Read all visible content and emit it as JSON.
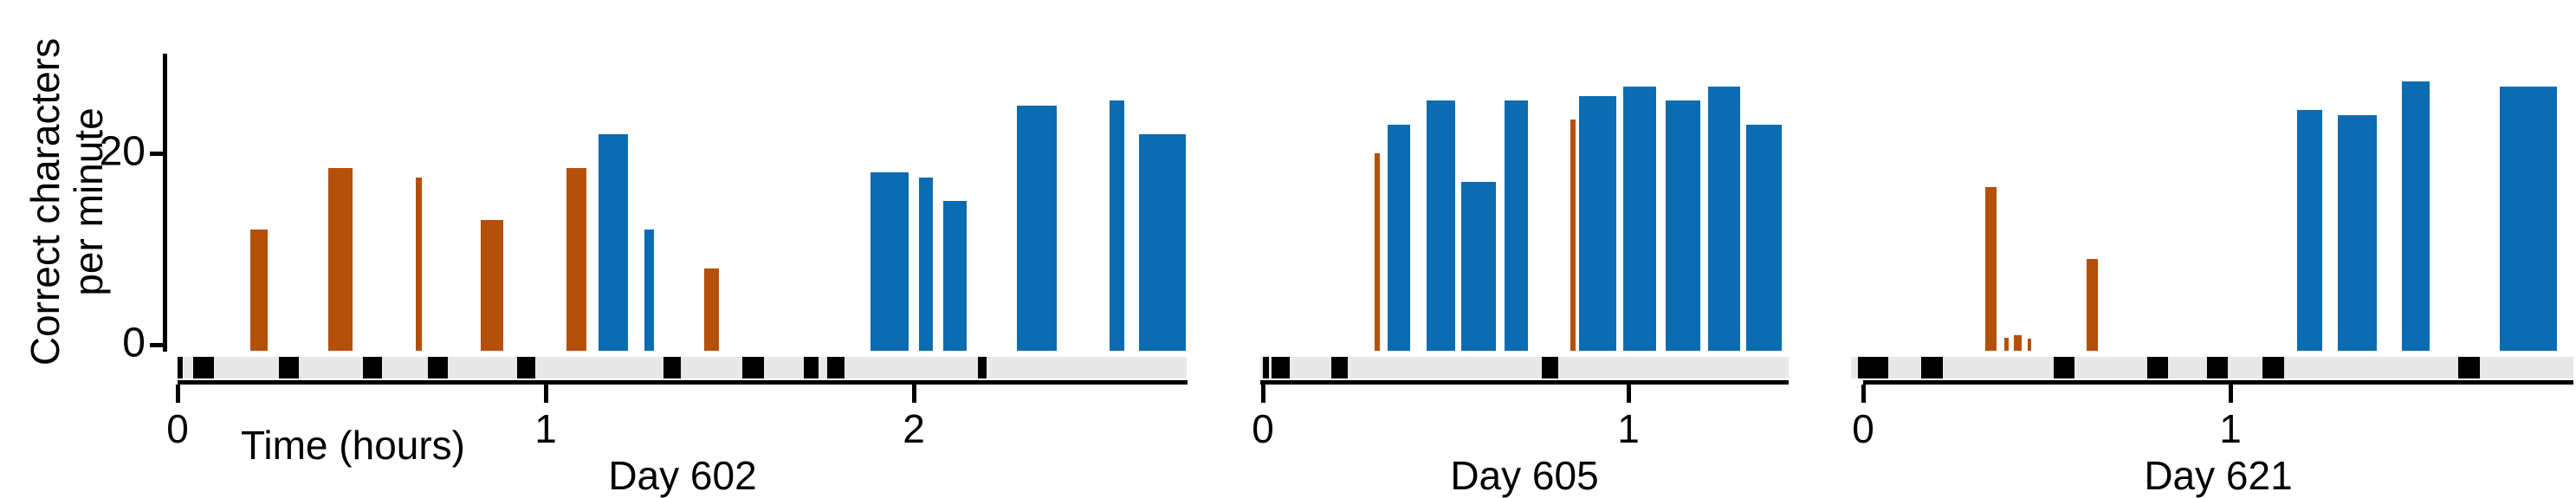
{
  "figure": {
    "y_axis": {
      "label_line1": "Correct characters",
      "label_line2": "per minute",
      "ticks": [
        {
          "v": 20,
          "label": "20"
        },
        {
          "v": 0,
          "label": "0"
        }
      ],
      "ymax": 31
    },
    "x_axis": {
      "label": "Time (hours)"
    },
    "colors": {
      "orange": "#B5500A",
      "blue": "#0B6CB2",
      "strip": "#E8E8E8",
      "mark": "#000000",
      "axis": "#000000"
    }
  },
  "chart_data": [
    {
      "type": "bar",
      "title": "Day 602",
      "xlabel": "Time (hours)",
      "ylabel": "Correct characters per minute",
      "ylim": [
        0,
        31
      ],
      "x_ticks": [
        0,
        1,
        2
      ],
      "x_range_hours": [
        0,
        2.75
      ],
      "bars": [
        {
          "t": 0.221,
          "v": 12,
          "w": 0.049,
          "c": "orange"
        },
        {
          "t": 0.442,
          "v": 18.5,
          "w": 0.066,
          "c": "orange"
        },
        {
          "t": 0.656,
          "v": 17.5,
          "w": 0.016,
          "c": "orange"
        },
        {
          "t": 0.854,
          "v": 13,
          "w": 0.061,
          "c": "orange"
        },
        {
          "t": 1.084,
          "v": 18.5,
          "w": 0.054,
          "c": "orange"
        },
        {
          "t": 1.183,
          "v": 22,
          "w": 0.08,
          "c": "blue"
        },
        {
          "t": 1.281,
          "v": 12,
          "w": 0.026,
          "c": "blue"
        },
        {
          "t": 1.451,
          "v": 8,
          "w": 0.04,
          "c": "orange"
        },
        {
          "t": 1.934,
          "v": 18,
          "w": 0.104,
          "c": "blue"
        },
        {
          "t": 2.033,
          "v": 17.5,
          "w": 0.038,
          "c": "blue"
        },
        {
          "t": 2.111,
          "v": 15,
          "w": 0.064,
          "c": "blue"
        },
        {
          "t": 2.334,
          "v": 25,
          "w": 0.108,
          "c": "blue"
        },
        {
          "t": 2.551,
          "v": 25.5,
          "w": 0.04,
          "c": "blue"
        },
        {
          "t": 2.675,
          "v": 22,
          "w": 0.127,
          "c": "blue"
        }
      ],
      "event_marks_hours": [
        [
          0.0,
          0.014
        ],
        [
          0.042,
          0.099
        ],
        [
          0.275,
          0.329
        ],
        [
          0.504,
          0.555
        ],
        [
          0.68,
          0.734
        ],
        [
          0.922,
          0.972
        ],
        [
          1.32,
          1.367
        ],
        [
          1.534,
          1.593
        ],
        [
          1.701,
          1.741
        ],
        [
          1.765,
          1.812
        ],
        [
          2.174,
          2.198
        ]
      ],
      "strip_range_hours": [
        0.016,
        2.741
      ],
      "px": {
        "x0": 205,
        "per_hour": 425,
        "axis_start": 205,
        "axis_end": 1371,
        "strip": [
          212,
          1370
        ]
      }
    },
    {
      "type": "bar",
      "title": "Day 605",
      "xlabel": "Time (hours)",
      "ylabel": "Correct characters per minute",
      "ylim": [
        0,
        31
      ],
      "x_ticks": [
        0,
        1
      ],
      "x_range_hours": [
        0,
        1.44
      ],
      "bars": [
        {
          "t": 0.313,
          "v": 20,
          "w": 0.014,
          "c": "orange"
        },
        {
          "t": 0.372,
          "v": 23,
          "w": 0.062,
          "c": "blue"
        },
        {
          "t": 0.486,
          "v": 25.5,
          "w": 0.078,
          "c": "blue"
        },
        {
          "t": 0.59,
          "v": 17,
          "w": 0.095,
          "c": "blue"
        },
        {
          "t": 0.692,
          "v": 25.5,
          "w": 0.064,
          "c": "blue"
        },
        {
          "t": 0.848,
          "v": 23.5,
          "w": 0.014,
          "c": "orange"
        },
        {
          "t": 0.917,
          "v": 26,
          "w": 0.102,
          "c": "blue"
        },
        {
          "t": 1.031,
          "v": 27,
          "w": 0.09,
          "c": "blue"
        },
        {
          "t": 1.149,
          "v": 25.5,
          "w": 0.095,
          "c": "blue"
        },
        {
          "t": 1.261,
          "v": 27,
          "w": 0.088,
          "c": "blue"
        },
        {
          "t": 1.37,
          "v": 23,
          "w": 0.097,
          "c": "blue"
        }
      ],
      "event_marks_hours": [
        [
          0.0,
          0.017
        ],
        [
          0.024,
          0.073
        ],
        [
          0.187,
          0.232
        ],
        [
          0.763,
          0.808
        ]
      ],
      "strip_range_hours": [
        -0.007,
        1.438
      ],
      "px": {
        "x0": 1458,
        "per_hour": 422,
        "axis_start": 1455,
        "axis_end": 2065,
        "strip": [
          1455,
          2065
        ]
      }
    },
    {
      "type": "bar",
      "title": "Day 621",
      "xlabel": "Time (hours)",
      "ylabel": "Correct characters per minute",
      "ylim": [
        0,
        31
      ],
      "x_ticks": [
        0,
        1
      ],
      "x_range_hours": [
        0,
        1.94
      ],
      "bars": [
        {
          "t": 0.347,
          "v": 16.5,
          "w": 0.031,
          "c": "orange"
        },
        {
          "t": 0.39,
          "v": 0.7,
          "w": 0.012,
          "c": "orange"
        },
        {
          "t": 0.42,
          "v": 1.0,
          "w": 0.021,
          "c": "orange"
        },
        {
          "t": 0.452,
          "v": 0.6,
          "w": 0.009,
          "c": "orange"
        },
        {
          "t": 0.623,
          "v": 9,
          "w": 0.031,
          "c": "orange"
        },
        {
          "t": 1.215,
          "v": 24.5,
          "w": 0.068,
          "c": "blue"
        },
        {
          "t": 1.345,
          "v": 24,
          "w": 0.106,
          "c": "blue"
        },
        {
          "t": 1.505,
          "v": 27.5,
          "w": 0.075,
          "c": "blue"
        },
        {
          "t": 1.811,
          "v": 27,
          "w": 0.156,
          "c": "blue"
        }
      ],
      "event_marks_hours": [
        [
          -0.014,
          0.068
        ],
        [
          0.158,
          0.217
        ],
        [
          0.519,
          0.575
        ],
        [
          0.774,
          0.83
        ],
        [
          0.936,
          0.993
        ],
        [
          1.087,
          1.146
        ],
        [
          1.62,
          1.679
        ]
      ],
      "strip_range_hours": [
        -0.033,
        1.935
      ],
      "px": {
        "x0": 2151,
        "per_hour": 424,
        "axis_start": 2151,
        "axis_end": 2971,
        "strip": [
          2137,
          2971
        ]
      }
    }
  ]
}
